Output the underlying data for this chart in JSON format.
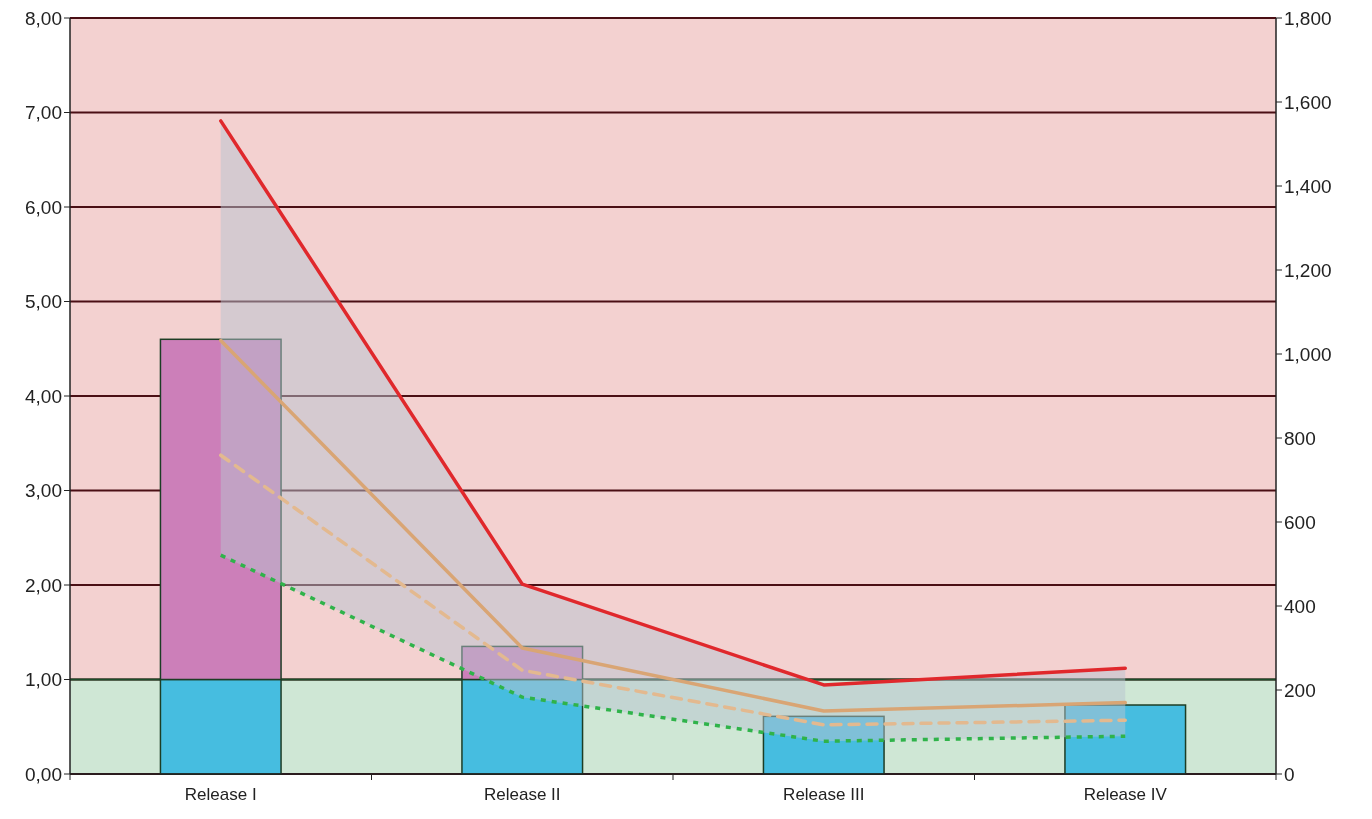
{
  "chart_data": {
    "type": "bar",
    "stacked": true,
    "categories": [
      "Release I",
      "Release II",
      "Release III",
      "Release IV"
    ],
    "series": [
      {
        "color": "#46bde0",
        "values": [
          1,
          1,
          0.61,
          0.73
        ]
      },
      {
        "color": "#cc7fb9",
        "values": [
          3.6,
          0.35,
          null,
          null
        ]
      },
      {
        "type": "line",
        "axis": "y2",
        "color": "#e0282c",
        "line_style": "solid",
        "values": [
          1555,
          452,
          212,
          252
        ]
      },
      {
        "type": "line",
        "axis": "y2",
        "color": "#d9a574",
        "line_style": "solid",
        "values": [
          1032,
          300,
          150,
          170
        ],
        "lower": [
          521,
          183,
          78,
          90
        ],
        "upper": [
          1555,
          452,
          212,
          252
        ]
      },
      {
        "type": "line",
        "axis": "y2",
        "color": "#e3b98f",
        "line_style": "dashed",
        "values": [
          759,
          247,
          117,
          128
        ]
      },
      {
        "type": "line",
        "axis": "y2",
        "color": "#2fb34a",
        "line_style": "dotted",
        "values": [
          521,
          183,
          78,
          90
        ]
      }
    ],
    "ylim": [
      0,
      8
    ],
    "yticks": [
      {
        "value": 0,
        "label": "0,00"
      },
      {
        "value": 1,
        "label": "1,00"
      },
      {
        "value": 2,
        "label": "2,00"
      },
      {
        "value": 3,
        "label": "3,00"
      },
      {
        "value": 4,
        "label": "4,00"
      },
      {
        "value": 5,
        "label": "5,00"
      },
      {
        "value": 6,
        "label": "6,00"
      },
      {
        "value": 7,
        "label": "7,00"
      },
      {
        "value": 8,
        "label": "8,00"
      }
    ],
    "y2lim": [
      0,
      1800
    ],
    "y2ticks": [
      0,
      200,
      400,
      600,
      800,
      {
        "value": 1000,
        "label": "1,000"
      },
      {
        "value": 1200,
        "label": "1,200"
      },
      {
        "value": 1400,
        "label": "1,400"
      },
      {
        "value": 1600,
        "label": "1,600"
      },
      {
        "value": 1800,
        "label": "1,800"
      }
    ],
    "bands": [
      {
        "axis": "y",
        "from": 0,
        "to": 1,
        "color": "#cfe7d5"
      },
      {
        "axis": "y",
        "from": 1,
        "to": 8,
        "color": "#f3d1d0"
      }
    ],
    "ref_lines": [
      {
        "axis": "y",
        "value": 1,
        "color": "#1d4d2a"
      }
    ],
    "grid": "y",
    "marker": "none"
  }
}
